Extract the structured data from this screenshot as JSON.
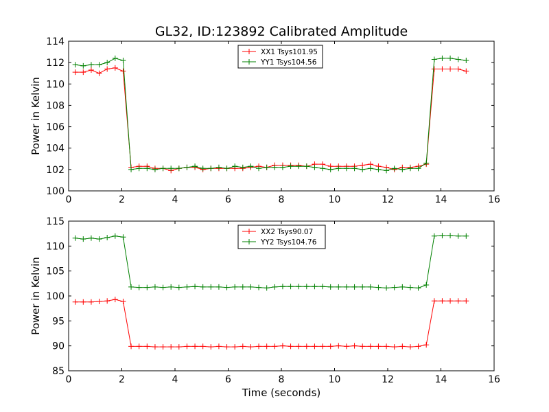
{
  "chart_data": [
    {
      "type": "line",
      "title": "GL32, ID:123892 Calibrated Amplitude",
      "xlabel": "",
      "ylabel": "Power in Kelvin",
      "xlim": [
        0,
        16
      ],
      "ylim": [
        100,
        114
      ],
      "xticks": [
        "0",
        "2",
        "4",
        "6",
        "8",
        "10",
        "12",
        "14",
        "16"
      ],
      "yticks": [
        "100",
        "102",
        "104",
        "106",
        "108",
        "110",
        "112",
        "114"
      ],
      "legend_position": "top-center",
      "grid": false,
      "x": [
        0.25,
        0.55,
        0.85,
        1.15,
        1.45,
        1.75,
        2.05,
        2.35,
        2.65,
        2.95,
        3.25,
        3.55,
        3.85,
        4.15,
        4.45,
        4.75,
        5.05,
        5.35,
        5.65,
        5.95,
        6.25,
        6.55,
        6.85,
        7.15,
        7.45,
        7.75,
        8.05,
        8.35,
        8.65,
        8.95,
        9.25,
        9.55,
        9.85,
        10.15,
        10.45,
        10.75,
        11.05,
        11.35,
        11.65,
        11.95,
        12.25,
        12.55,
        12.85,
        13.15,
        13.45,
        13.75,
        14.05,
        14.35,
        14.65,
        14.95
      ],
      "series": [
        {
          "name": "XX1 Tsys101.95",
          "color": "#ff0000",
          "values": [
            111.1,
            111.1,
            111.3,
            111.0,
            111.4,
            111.5,
            111.2,
            102.2,
            102.3,
            102.3,
            102.1,
            102.1,
            101.9,
            102.1,
            102.2,
            102.2,
            102.0,
            102.1,
            102.1,
            102.1,
            102.1,
            102.1,
            102.2,
            102.3,
            102.2,
            102.4,
            102.4,
            102.4,
            102.4,
            102.3,
            102.5,
            102.5,
            102.3,
            102.3,
            102.3,
            102.3,
            102.4,
            102.5,
            102.3,
            102.2,
            102.0,
            102.2,
            102.2,
            102.3,
            102.5,
            111.4,
            111.4,
            111.4,
            111.4,
            111.2
          ]
        },
        {
          "name": "YY1 Tsys104.56",
          "color": "#008000",
          "values": [
            111.8,
            111.7,
            111.8,
            111.8,
            112.0,
            112.4,
            112.2,
            102.0,
            102.1,
            102.1,
            102.0,
            102.1,
            102.1,
            102.1,
            102.2,
            102.3,
            102.1,
            102.1,
            102.2,
            102.1,
            102.3,
            102.2,
            102.3,
            102.1,
            102.2,
            102.2,
            102.2,
            102.3,
            102.3,
            102.3,
            102.2,
            102.1,
            102.0,
            102.1,
            102.1,
            102.1,
            102.0,
            102.1,
            102.0,
            101.9,
            102.1,
            102.0,
            102.1,
            102.1,
            102.6,
            112.3,
            112.4,
            112.4,
            112.3,
            112.2
          ]
        }
      ]
    },
    {
      "type": "line",
      "title": "",
      "xlabel": "Time (seconds)",
      "ylabel": "Power in Kelvin",
      "xlim": [
        0,
        16
      ],
      "ylim": [
        85,
        115
      ],
      "xticks": [
        "0",
        "2",
        "4",
        "6",
        "8",
        "10",
        "12",
        "14",
        "16"
      ],
      "yticks": [
        "85",
        "90",
        "95",
        "100",
        "105",
        "110",
        "115"
      ],
      "legend_position": "top-center",
      "grid": false,
      "x": [
        0.25,
        0.55,
        0.85,
        1.15,
        1.45,
        1.75,
        2.05,
        2.35,
        2.65,
        2.95,
        3.25,
        3.55,
        3.85,
        4.15,
        4.45,
        4.75,
        5.05,
        5.35,
        5.65,
        5.95,
        6.25,
        6.55,
        6.85,
        7.15,
        7.45,
        7.75,
        8.05,
        8.35,
        8.65,
        8.95,
        9.25,
        9.55,
        9.85,
        10.15,
        10.45,
        10.75,
        11.05,
        11.35,
        11.65,
        11.95,
        12.25,
        12.55,
        12.85,
        13.15,
        13.45,
        13.75,
        14.05,
        14.35,
        14.65,
        14.95
      ],
      "series": [
        {
          "name": "XX2 Tsys90.07",
          "color": "#ff0000",
          "values": [
            98.8,
            98.8,
            98.8,
            98.9,
            99.0,
            99.3,
            98.9,
            89.9,
            89.9,
            89.9,
            89.8,
            89.8,
            89.8,
            89.8,
            89.9,
            89.9,
            89.9,
            89.8,
            89.9,
            89.8,
            89.8,
            89.9,
            89.8,
            89.9,
            89.9,
            89.9,
            90.0,
            89.9,
            89.9,
            89.9,
            89.9,
            89.9,
            89.9,
            90.0,
            89.9,
            90.0,
            89.9,
            89.9,
            89.9,
            89.9,
            89.8,
            89.9,
            89.8,
            89.9,
            90.2,
            99.0,
            99.0,
            99.0,
            99.0,
            99.0
          ]
        },
        {
          "name": "YY2 Tsys104.76",
          "color": "#008000",
          "values": [
            111.6,
            111.4,
            111.6,
            111.4,
            111.7,
            112.0,
            111.8,
            101.8,
            101.7,
            101.7,
            101.8,
            101.7,
            101.8,
            101.7,
            101.8,
            101.9,
            101.8,
            101.8,
            101.8,
            101.7,
            101.8,
            101.8,
            101.8,
            101.7,
            101.6,
            101.8,
            101.9,
            101.9,
            101.9,
            101.9,
            101.9,
            101.9,
            101.8,
            101.8,
            101.8,
            101.8,
            101.8,
            101.8,
            101.7,
            101.6,
            101.7,
            101.8,
            101.7,
            101.6,
            102.2,
            112.0,
            112.1,
            112.1,
            112.0,
            112.0
          ]
        }
      ]
    }
  ]
}
